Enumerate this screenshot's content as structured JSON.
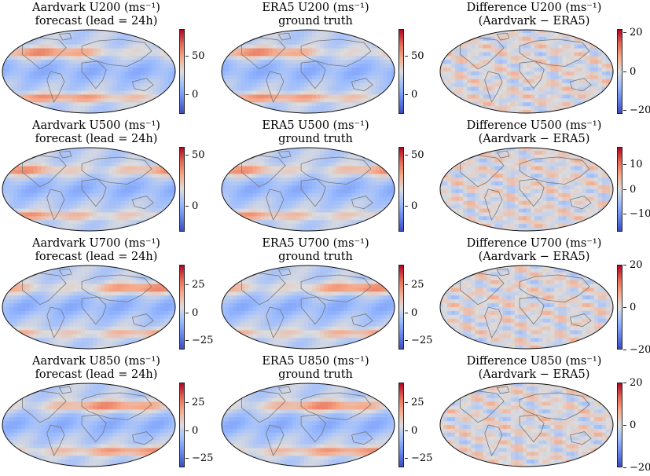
{
  "chart_data": {
    "type": "heatmap",
    "grid": {
      "rows": 4,
      "columns": 3
    },
    "colormap": "coolwarm",
    "colors": {
      "low": "#3b4cc0",
      "mid": "#dddcdc",
      "high": "#b40426",
      "coast": "#777777",
      "border": "#8a8a8a"
    },
    "panels": [
      {
        "title_line1": "Aardvark U200 (ms⁻¹)",
        "title_line2": "forecast (lead = 24h)",
        "variable": "U200",
        "kind": "forecast",
        "clim": [
          -25,
          85
        ],
        "colorbar_ticks": [
          {
            "value": 50,
            "label": "50"
          },
          {
            "value": 0,
            "label": "0"
          }
        ]
      },
      {
        "title_line1": "ERA5 U200 (ms⁻¹)",
        "title_line2": "ground truth",
        "variable": "U200",
        "kind": "truth",
        "clim": [
          -25,
          85
        ],
        "colorbar_ticks": [
          {
            "value": 50,
            "label": "50"
          },
          {
            "value": 0,
            "label": "0"
          }
        ]
      },
      {
        "title_line1": "Difference U200 (ms⁻¹)",
        "title_line2": "(Aardvark − ERA5)",
        "variable": "U200",
        "kind": "diff",
        "clim": [
          -22,
          22
        ],
        "colorbar_ticks": [
          {
            "value": 20,
            "label": "20"
          },
          {
            "value": 0,
            "label": "0"
          },
          {
            "value": -20,
            "label": "−20"
          }
        ]
      },
      {
        "title_line1": "Aardvark U500 (ms⁻¹)",
        "title_line2": "forecast (lead = 24h)",
        "variable": "U500",
        "kind": "forecast",
        "clim": [
          -25,
          58
        ],
        "colorbar_ticks": [
          {
            "value": 50,
            "label": "50"
          },
          {
            "value": 0,
            "label": "0"
          }
        ]
      },
      {
        "title_line1": "ERA5 U500 (ms⁻¹)",
        "title_line2": "ground truth",
        "variable": "U500",
        "kind": "truth",
        "clim": [
          -25,
          58
        ],
        "colorbar_ticks": [
          {
            "value": 50,
            "label": "50"
          },
          {
            "value": 0,
            "label": "0"
          }
        ]
      },
      {
        "title_line1": "Difference U500 (ms⁻¹)",
        "title_line2": "(Aardvark − ERA5)",
        "variable": "U500",
        "kind": "diff",
        "clim": [
          -17,
          17
        ],
        "colorbar_ticks": [
          {
            "value": 10,
            "label": "10"
          },
          {
            "value": 0,
            "label": "0"
          },
          {
            "value": -10,
            "label": "−10"
          }
        ]
      },
      {
        "title_line1": "Aardvark U700 (ms⁻¹)",
        "title_line2": "forecast (lead = 24h)",
        "variable": "U700",
        "kind": "forecast",
        "clim": [
          -33,
          43
        ],
        "colorbar_ticks": [
          {
            "value": 25,
            "label": "25"
          },
          {
            "value": 0,
            "label": "0"
          },
          {
            "value": -25,
            "label": "−25"
          }
        ]
      },
      {
        "title_line1": "ERA5 U700 (ms⁻¹)",
        "title_line2": "ground truth",
        "variable": "U700",
        "kind": "truth",
        "clim": [
          -33,
          43
        ],
        "colorbar_ticks": [
          {
            "value": 25,
            "label": "25"
          },
          {
            "value": 0,
            "label": "0"
          },
          {
            "value": -25,
            "label": "−25"
          }
        ]
      },
      {
        "title_line1": "Difference U700 (ms⁻¹)",
        "title_line2": "(Aardvark − ERA5)",
        "variable": "U700",
        "kind": "diff",
        "clim": [
          -20,
          20
        ],
        "colorbar_ticks": [
          {
            "value": 20,
            "label": "20"
          },
          {
            "value": 0,
            "label": "0"
          },
          {
            "value": -20,
            "label": "−20"
          }
        ]
      },
      {
        "title_line1": "Aardvark U850 (ms⁻¹)",
        "title_line2": "forecast (lead = 24h)",
        "variable": "U850",
        "kind": "forecast",
        "clim": [
          -33,
          43
        ],
        "colorbar_ticks": [
          {
            "value": 25,
            "label": "25"
          },
          {
            "value": 0,
            "label": "0"
          },
          {
            "value": -25,
            "label": "−25"
          }
        ]
      },
      {
        "title_line1": "ERA5 U850 (ms⁻¹)",
        "title_line2": "ground truth",
        "variable": "U850",
        "kind": "truth",
        "clim": [
          -33,
          43
        ],
        "colorbar_ticks": [
          {
            "value": 25,
            "label": "25"
          },
          {
            "value": 0,
            "label": "0"
          },
          {
            "value": -25,
            "label": "−25"
          }
        ]
      },
      {
        "title_line1": "Difference U850 (ms⁻¹)",
        "title_line2": "(Aardvark − ERA5)",
        "variable": "U850",
        "kind": "diff",
        "clim": [
          -20,
          20
        ],
        "colorbar_ticks": [
          {
            "value": 20,
            "label": "20"
          },
          {
            "value": 0,
            "label": "0"
          },
          {
            "value": -20,
            "label": "−20"
          }
        ]
      }
    ]
  }
}
